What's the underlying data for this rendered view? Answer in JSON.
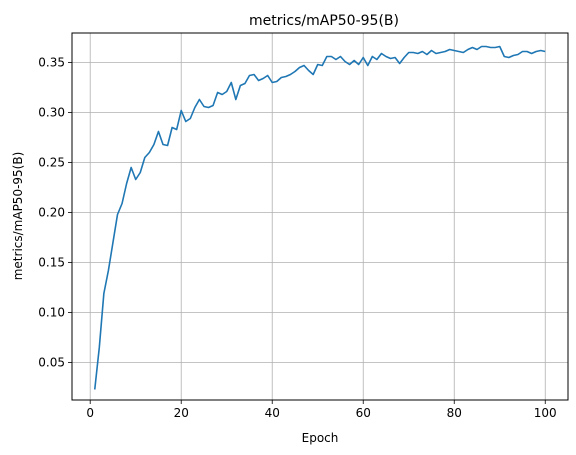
{
  "chart_data": {
    "type": "line",
    "title": "metrics/mAP50-95(B)",
    "xlabel": "Epoch",
    "ylabel": "metrics/mAP50-95(B)",
    "xlim": [
      -4,
      105
    ],
    "ylim": [
      0.0125,
      0.3795
    ],
    "xticks": [
      0,
      20,
      40,
      60,
      80,
      100
    ],
    "yticks": [
      0.05,
      0.1,
      0.15,
      0.2,
      0.25,
      0.3,
      0.35
    ],
    "grid": true,
    "series": [
      {
        "color": "#1f77b4",
        "x": [
          1,
          2,
          3,
          4,
          5,
          6,
          7,
          8,
          9,
          10,
          11,
          12,
          13,
          14,
          15,
          16,
          17,
          18,
          19,
          20,
          21,
          22,
          23,
          24,
          25,
          26,
          27,
          28,
          29,
          30,
          31,
          32,
          33,
          34,
          35,
          36,
          37,
          38,
          39,
          40,
          41,
          42,
          43,
          44,
          45,
          46,
          47,
          48,
          49,
          50,
          51,
          52,
          53,
          54,
          55,
          56,
          57,
          58,
          59,
          60,
          61,
          62,
          63,
          64,
          65,
          66,
          67,
          68,
          69,
          70,
          71,
          72,
          73,
          74,
          75,
          76,
          77,
          78,
          79,
          80,
          81,
          82,
          83,
          84,
          85,
          86,
          87,
          88,
          89,
          90,
          91,
          92,
          93,
          94,
          95,
          96,
          97,
          98,
          99,
          100
        ],
        "y": [
          0.023,
          0.065,
          0.119,
          0.142,
          0.17,
          0.198,
          0.209,
          0.229,
          0.245,
          0.233,
          0.24,
          0.255,
          0.26,
          0.268,
          0.281,
          0.268,
          0.267,
          0.285,
          0.283,
          0.302,
          0.291,
          0.294,
          0.305,
          0.313,
          0.306,
          0.305,
          0.307,
          0.32,
          0.318,
          0.321,
          0.33,
          0.313,
          0.327,
          0.329,
          0.337,
          0.338,
          0.332,
          0.334,
          0.337,
          0.33,
          0.331,
          0.335,
          0.336,
          0.338,
          0.341,
          0.345,
          0.347,
          0.342,
          0.338,
          0.348,
          0.347,
          0.356,
          0.356,
          0.353,
          0.356,
          0.351,
          0.348,
          0.352,
          0.348,
          0.355,
          0.347,
          0.356,
          0.353,
          0.359,
          0.356,
          0.354,
          0.355,
          0.349,
          0.355,
          0.36,
          0.36,
          0.359,
          0.361,
          0.358,
          0.362,
          0.359,
          0.36,
          0.361,
          0.363,
          0.362,
          0.361,
          0.36,
          0.363,
          0.365,
          0.363,
          0.366,
          0.366,
          0.365,
          0.365,
          0.366,
          0.356,
          0.355,
          0.357,
          0.358,
          0.361,
          0.361,
          0.359,
          0.361,
          0.362,
          0.361
        ]
      }
    ]
  }
}
